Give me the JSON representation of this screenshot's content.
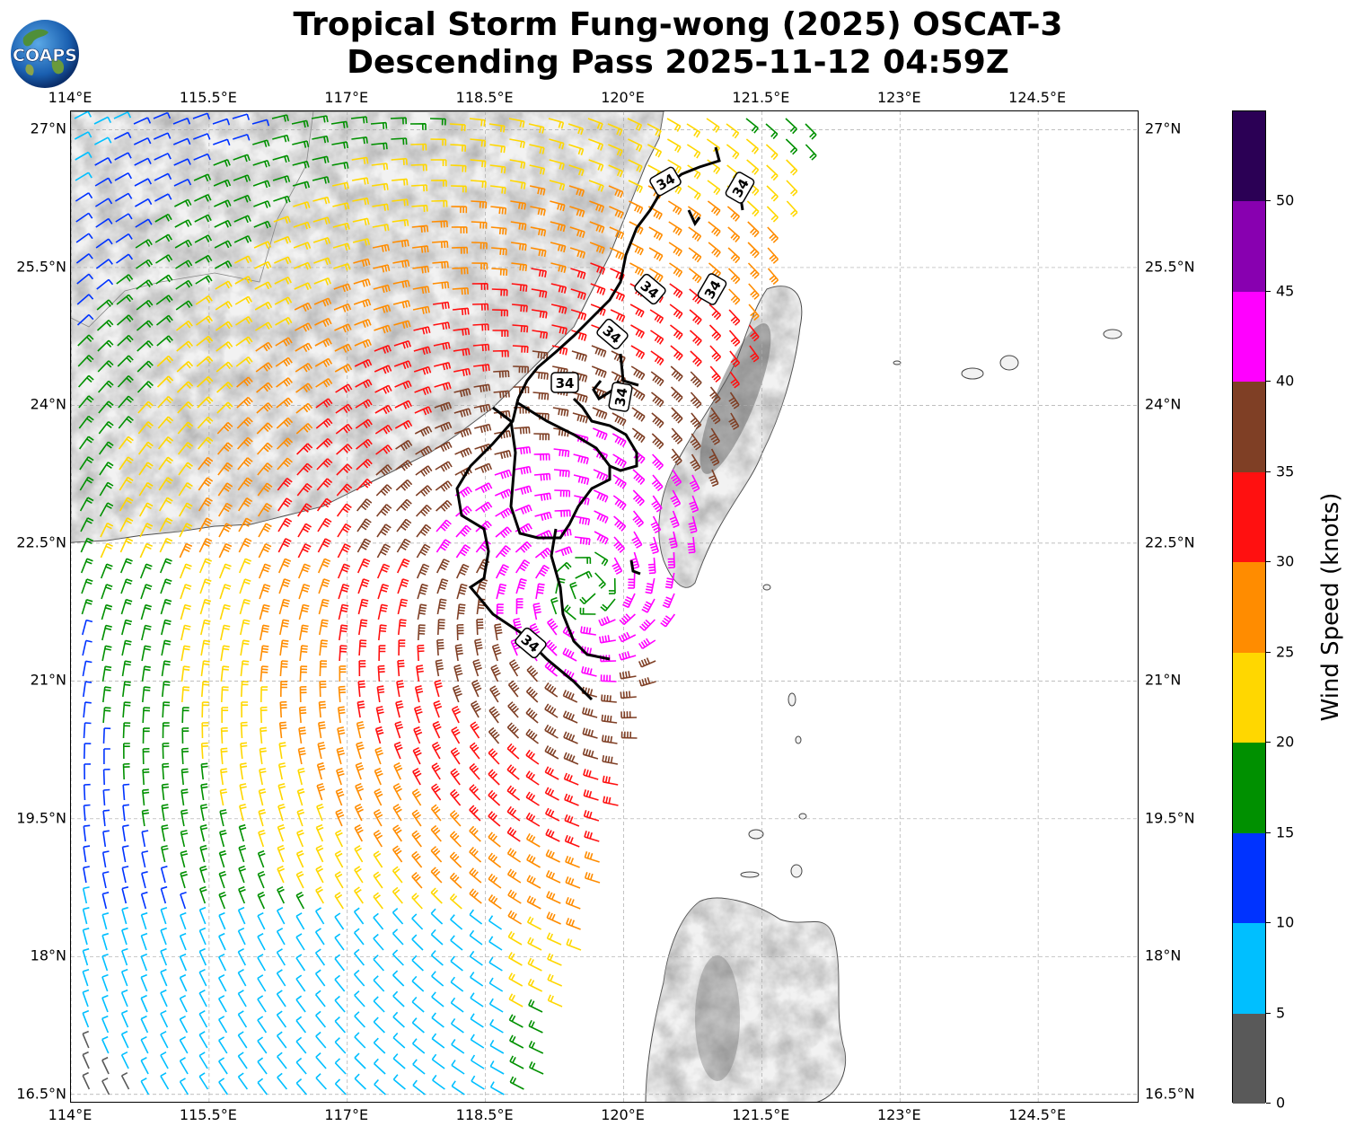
{
  "title": {
    "line1": "Tropical Storm Fung-wong (2025) OSCAT-3",
    "line2": "Descending Pass 2025-11-12 04:59Z"
  },
  "logo": {
    "text": "COAPS",
    "icon": "globe-logo-icon"
  },
  "map_axes": {
    "lon_ticks": [
      {
        "value": 114.0,
        "label": "114°E"
      },
      {
        "value": 115.5,
        "label": "115.5°E"
      },
      {
        "value": 117.0,
        "label": "117°E"
      },
      {
        "value": 118.5,
        "label": "118.5°E"
      },
      {
        "value": 120.0,
        "label": "120°E"
      },
      {
        "value": 121.5,
        "label": "121.5°E"
      },
      {
        "value": 123.0,
        "label": "123°E"
      },
      {
        "value": 124.5,
        "label": "124.5°E"
      }
    ],
    "lat_ticks": [
      {
        "value": 27.0,
        "label": "27°N"
      },
      {
        "value": 25.5,
        "label": "25.5°N"
      },
      {
        "value": 24.0,
        "label": "24°N"
      },
      {
        "value": 22.5,
        "label": "22.5°N"
      },
      {
        "value": 21.0,
        "label": "21°N"
      },
      {
        "value": 19.5,
        "label": "19.5°N"
      },
      {
        "value": 18.0,
        "label": "18°N"
      },
      {
        "value": 16.5,
        "label": "16.5°N"
      }
    ],
    "lon_range": [
      114.0,
      125.6
    ],
    "lat_range": [
      16.4,
      27.2
    ],
    "grid": true
  },
  "storm_center": {
    "lon": 119.6,
    "lat": 22.0
  },
  "contour_label": "34",
  "colorbar": {
    "label": "Wind Speed (knots)",
    "ticks": [
      "0",
      "5",
      "10",
      "15",
      "20",
      "25",
      "30",
      "35",
      "40",
      "45",
      "50"
    ],
    "bins": [
      {
        "from": 0,
        "to": 5,
        "color": "#595959"
      },
      {
        "from": 5,
        "to": 10,
        "color": "#00bfff"
      },
      {
        "from": 10,
        "to": 15,
        "color": "#0033ff"
      },
      {
        "from": 15,
        "to": 20,
        "color": "#009000"
      },
      {
        "from": 20,
        "to": 25,
        "color": "#ffd700"
      },
      {
        "from": 25,
        "to": 30,
        "color": "#ff8c00"
      },
      {
        "from": 30,
        "to": 35,
        "color": "#ff1010"
      },
      {
        "from": 35,
        "to": 40,
        "color": "#7f3f25"
      },
      {
        "from": 40,
        "to": 45,
        "color": "#ff00ff"
      },
      {
        "from": 45,
        "to": 50,
        "color": "#8800b0"
      },
      {
        "from": 50,
        "to": 55,
        "color": "#2b0055"
      }
    ]
  }
}
